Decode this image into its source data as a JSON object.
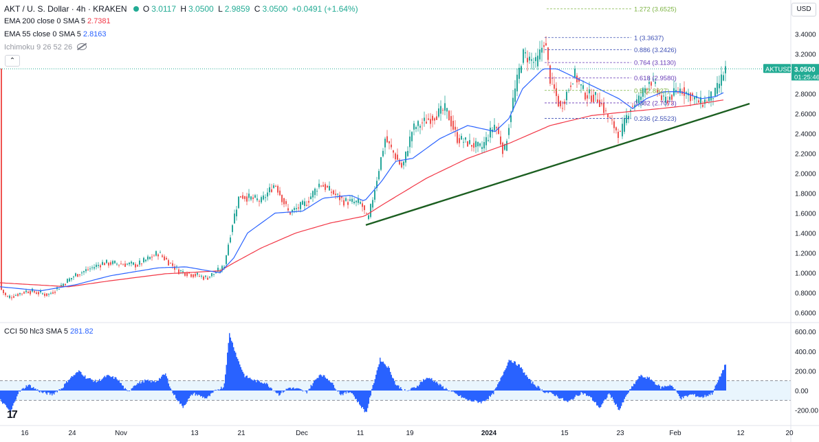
{
  "header": {
    "symbol_title": "AKT / U. S. Dollar · 4h · KRAKEN",
    "ohlc": [
      {
        "key": "O",
        "value": "3.0117"
      },
      {
        "key": "H",
        "value": "3.0500"
      },
      {
        "key": "L",
        "value": "2.9859"
      },
      {
        "key": "C",
        "value": "3.0500"
      }
    ],
    "change": "+0.0491 (+1.64%)",
    "currency_button": "USD",
    "collapse_icon": "chevron-up-icon"
  },
  "indicators": {
    "ema200": {
      "label": "EMA 200 close 0 SMA 5",
      "value": "2.7381",
      "color": "#f23645"
    },
    "ema55": {
      "label": "EMA 55 close 0 SMA 5",
      "value": "2.8163",
      "color": "#2962ff"
    },
    "ichimoku": {
      "label": "Ichimoku 9 26 52 26",
      "icon": "eye-hidden-icon"
    },
    "cci": {
      "label": "CCI 50 hlc3 SMA 5",
      "value": "281.82",
      "color": "#2962ff"
    }
  },
  "price_tag": {
    "symbol": "AKTUSD",
    "price": "3.0500",
    "countdown": "01:25:46",
    "color": "#22ab94"
  },
  "logo_text": "17",
  "chart_data": [
    {
      "type": "candlestick",
      "title": "AKT / U. S. Dollar · 4h · KRAKEN",
      "x_tick_labels": [
        "16",
        "24",
        "Nov",
        "13",
        "21",
        "Dec",
        "11",
        "19",
        "2024",
        "15",
        "23",
        "Feb",
        "12",
        "20"
      ],
      "y_tick_labels": [
        "0.6000",
        "0.8000",
        "1.0000",
        "1.2000",
        "1.4000",
        "1.6000",
        "1.8000",
        "2.0000",
        "2.2000",
        "2.4000",
        "2.6000",
        "2.8000",
        "3.2000",
        "3.4000"
      ],
      "ylim": [
        0.55,
        3.7
      ],
      "grid": false,
      "price_anchors": [
        [
          0,
          0.85
        ],
        [
          10,
          0.75
        ],
        [
          40,
          0.82
        ],
        [
          70,
          0.78
        ],
        [
          110,
          0.98
        ],
        [
          150,
          1.1
        ],
        [
          200,
          1.08
        ],
        [
          230,
          1.2
        ],
        [
          260,
          1.02
        ],
        [
          300,
          0.95
        ],
        [
          325,
          1.05
        ],
        [
          338,
          1.5
        ],
        [
          348,
          1.78
        ],
        [
          380,
          1.72
        ],
        [
          400,
          1.9
        ],
        [
          420,
          1.6
        ],
        [
          445,
          1.7
        ],
        [
          465,
          1.9
        ],
        [
          500,
          1.72
        ],
        [
          525,
          1.7
        ],
        [
          535,
          1.52
        ],
        [
          545,
          1.85
        ],
        [
          560,
          2.35
        ],
        [
          585,
          2.05
        ],
        [
          600,
          2.45
        ],
        [
          625,
          2.55
        ],
        [
          648,
          2.65
        ],
        [
          665,
          2.35
        ],
        [
          700,
          2.25
        ],
        [
          720,
          2.5
        ],
        [
          733,
          2.2
        ],
        [
          745,
          2.7
        ],
        [
          760,
          3.2
        ],
        [
          780,
          3.1
        ],
        [
          792,
          3.35
        ],
        [
          800,
          2.95
        ],
        [
          815,
          2.65
        ],
        [
          835,
          3.0
        ],
        [
          850,
          2.8
        ],
        [
          870,
          2.75
        ],
        [
          885,
          2.55
        ],
        [
          902,
          2.38
        ],
        [
          915,
          2.65
        ],
        [
          930,
          2.75
        ],
        [
          945,
          2.95
        ],
        [
          965,
          2.72
        ],
        [
          990,
          2.85
        ],
        [
          1020,
          2.7
        ],
        [
          1040,
          2.8
        ],
        [
          1055,
          3.05
        ]
      ],
      "ema55_anchors": [
        [
          0,
          0.86
        ],
        [
          60,
          0.82
        ],
        [
          110,
          0.88
        ],
        [
          160,
          0.97
        ],
        [
          230,
          1.05
        ],
        [
          270,
          1.06
        ],
        [
          320,
          1.0
        ],
        [
          340,
          1.15
        ],
        [
          360,
          1.4
        ],
        [
          400,
          1.6
        ],
        [
          440,
          1.62
        ],
        [
          470,
          1.75
        ],
        [
          510,
          1.78
        ],
        [
          530,
          1.72
        ],
        [
          555,
          1.92
        ],
        [
          575,
          2.12
        ],
        [
          600,
          2.15
        ],
        [
          640,
          2.35
        ],
        [
          680,
          2.48
        ],
        [
          720,
          2.42
        ],
        [
          740,
          2.55
        ],
        [
          760,
          2.85
        ],
        [
          790,
          3.05
        ],
        [
          810,
          3.05
        ],
        [
          840,
          2.95
        ],
        [
          870,
          2.85
        ],
        [
          900,
          2.75
        ],
        [
          920,
          2.65
        ],
        [
          940,
          2.75
        ],
        [
          965,
          2.82
        ],
        [
          990,
          2.82
        ],
        [
          1020,
          2.75
        ],
        [
          1040,
          2.77
        ],
        [
          1055,
          2.82
        ]
      ],
      "ema200_anchors": [
        [
          0,
          0.9
        ],
        [
          100,
          0.86
        ],
        [
          160,
          0.92
        ],
        [
          240,
          0.99
        ],
        [
          320,
          1.02
        ],
        [
          340,
          1.1
        ],
        [
          380,
          1.25
        ],
        [
          430,
          1.4
        ],
        [
          480,
          1.5
        ],
        [
          530,
          1.57
        ],
        [
          560,
          1.7
        ],
        [
          620,
          1.95
        ],
        [
          680,
          2.15
        ],
        [
          740,
          2.3
        ],
        [
          800,
          2.48
        ],
        [
          860,
          2.58
        ],
        [
          900,
          2.61
        ],
        [
          960,
          2.65
        ],
        [
          1000,
          2.68
        ],
        [
          1055,
          2.74
        ]
      ],
      "trendline": {
        "from": [
          532,
          1.48
        ],
        "to": [
          1090,
          2.7
        ],
        "color": "#1b5e20"
      },
      "fibonacci": {
        "levels": [
          {
            "label": "1.272 (3.6525)",
            "value": 3.6525,
            "color": "#7cb342"
          },
          {
            "label": "1 (3.3637)",
            "value": 3.3637,
            "color": "#3f51b5"
          },
          {
            "label": "0.886 (3.2426)",
            "value": 3.2426,
            "color": "#3f51b5"
          },
          {
            "label": "0.764 (3.1130)",
            "value": 3.113,
            "color": "#673ab7"
          },
          {
            "label": "0.618 (2.9580)",
            "value": 2.958,
            "color": "#673ab7"
          },
          {
            "label": "0.5 (2.8327)",
            "value": 2.8327,
            "color": "#7cb342"
          },
          {
            "label": "0.382 (2.7073)",
            "value": 2.7073,
            "color": "#673ab7"
          },
          {
            "label": "0.236 (2.5523)",
            "value": 2.5523,
            "color": "#3f51b5"
          }
        ]
      }
    },
    {
      "type": "histogram",
      "title": "CCI 50 hlc3 SMA 5",
      "y_tick_labels": [
        "-200.00",
        "0.00",
        "200.00",
        "400.00",
        "600.00"
      ],
      "ylim": [
        -280,
        650
      ],
      "band": [
        -100,
        100
      ],
      "anchors": [
        [
          0,
          -100
        ],
        [
          15,
          -220
        ],
        [
          25,
          -30
        ],
        [
          40,
          60
        ],
        [
          60,
          -20
        ],
        [
          75,
          -40
        ],
        [
          90,
          30
        ],
        [
          100,
          120
        ],
        [
          115,
          200
        ],
        [
          125,
          130
        ],
        [
          140,
          90
        ],
        [
          155,
          150
        ],
        [
          170,
          120
        ],
        [
          185,
          -20
        ],
        [
          195,
          60
        ],
        [
          210,
          100
        ],
        [
          225,
          90
        ],
        [
          240,
          170
        ],
        [
          250,
          -20
        ],
        [
          265,
          -170
        ],
        [
          280,
          -30
        ],
        [
          300,
          -80
        ],
        [
          315,
          10
        ],
        [
          325,
          40
        ],
        [
          333,
          580
        ],
        [
          345,
          320
        ],
        [
          355,
          150
        ],
        [
          370,
          100
        ],
        [
          385,
          80
        ],
        [
          405,
          -40
        ],
        [
          420,
          30
        ],
        [
          435,
          10
        ],
        [
          445,
          -20
        ],
        [
          455,
          80
        ],
        [
          465,
          170
        ],
        [
          478,
          110
        ],
        [
          495,
          -40
        ],
        [
          510,
          -10
        ],
        [
          520,
          -120
        ],
        [
          532,
          -230
        ],
        [
          542,
          60
        ],
        [
          552,
          320
        ],
        [
          565,
          230
        ],
        [
          575,
          60
        ],
        [
          590,
          -10
        ],
        [
          605,
          40
        ],
        [
          615,
          110
        ],
        [
          625,
          130
        ],
        [
          640,
          50
        ],
        [
          660,
          -30
        ],
        [
          680,
          -100
        ],
        [
          700,
          -120
        ],
        [
          715,
          -50
        ],
        [
          725,
          80
        ],
        [
          740,
          320
        ],
        [
          755,
          250
        ],
        [
          770,
          100
        ],
        [
          790,
          -10
        ],
        [
          805,
          -40
        ],
        [
          825,
          -120
        ],
        [
          845,
          -20
        ],
        [
          858,
          -70
        ],
        [
          872,
          -180
        ],
        [
          885,
          -30
        ],
        [
          900,
          -200
        ],
        [
          912,
          -30
        ],
        [
          930,
          150
        ],
        [
          945,
          120
        ],
        [
          960,
          30
        ],
        [
          975,
          60
        ],
        [
          990,
          -80
        ],
        [
          1005,
          -40
        ],
        [
          1020,
          -70
        ],
        [
          1035,
          -30
        ],
        [
          1045,
          120
        ],
        [
          1055,
          280
        ]
      ]
    }
  ]
}
